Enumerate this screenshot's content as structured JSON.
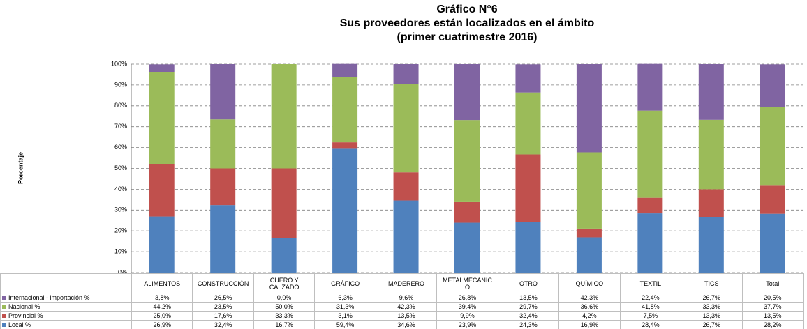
{
  "chart_data": {
    "type": "stacked_bar",
    "title_lines": [
      "Gráfico N°6",
      "Sus proveedores están localizados en el ámbito",
      "(primer cuatrimestre 2016)"
    ],
    "y_label": "Porcentaje",
    "categories": [
      "ALIMENTOS",
      "CONSTRUCCIÓN",
      "CUERO Y CALZADO",
      "GRÁFICO",
      "MADERERO",
      "METALMECÁNICO",
      "OTRO",
      "QUÍMICO",
      "TEXTIL",
      "TICS",
      "Total"
    ],
    "series": [
      {
        "name": "Internacional - importación %",
        "color": "#8064a2",
        "values": [
          3.8,
          26.5,
          0.0,
          6.3,
          9.6,
          26.8,
          13.5,
          42.3,
          22.4,
          26.7,
          20.5
        ],
        "value_labels": [
          "3,8%",
          "26,5%",
          "0,0%",
          "6,3%",
          "9,6%",
          "26,8%",
          "13,5%",
          "42,3%",
          "22,4%",
          "26,7%",
          "20,5%"
        ]
      },
      {
        "name": "Nacional %",
        "color": "#9bbb59",
        "values": [
          44.2,
          23.5,
          50.0,
          31.3,
          42.3,
          39.4,
          29.7,
          36.6,
          41.8,
          33.3,
          37.7
        ],
        "value_labels": [
          "44,2%",
          "23,5%",
          "50,0%",
          "31,3%",
          "42,3%",
          "39,4%",
          "29,7%",
          "36,6%",
          "41,8%",
          "33,3%",
          "37,7%"
        ]
      },
      {
        "name": "Provincial %",
        "color": "#c0504d",
        "values": [
          25.0,
          17.6,
          33.3,
          3.1,
          13.5,
          9.9,
          32.4,
          4.2,
          7.5,
          13.3,
          13.5
        ],
        "value_labels": [
          "25,0%",
          "17,6%",
          "33,3%",
          "3,1%",
          "13,5%",
          "9,9%",
          "32,4%",
          "4,2%",
          "7,5%",
          "13,3%",
          "13,5%"
        ]
      },
      {
        "name": "Local %",
        "color": "#4f81bd",
        "values": [
          26.9,
          32.4,
          16.7,
          59.4,
          34.6,
          23.9,
          24.3,
          16.9,
          28.4,
          26.7,
          28.2
        ],
        "value_labels": [
          "26,9%",
          "32,4%",
          "16,7%",
          "59,4%",
          "34,6%",
          "23,9%",
          "24,3%",
          "16,9%",
          "28,4%",
          "26,7%",
          "28,2%"
        ]
      }
    ],
    "ylim": [
      0,
      100
    ],
    "yticks": [
      {
        "value": 0,
        "label": "0%"
      },
      {
        "value": 10,
        "label": "10%"
      },
      {
        "value": 20,
        "label": "20%"
      },
      {
        "value": 30,
        "label": "30%"
      },
      {
        "value": 40,
        "label": "40%"
      },
      {
        "value": 50,
        "label": "50%"
      },
      {
        "value": 60,
        "label": "60%"
      },
      {
        "value": 70,
        "label": "70%"
      },
      {
        "value": 80,
        "label": "80%"
      },
      {
        "value": 90,
        "label": "90%"
      },
      {
        "value": 100,
        "label": "100%"
      }
    ],
    "grid": true
  }
}
